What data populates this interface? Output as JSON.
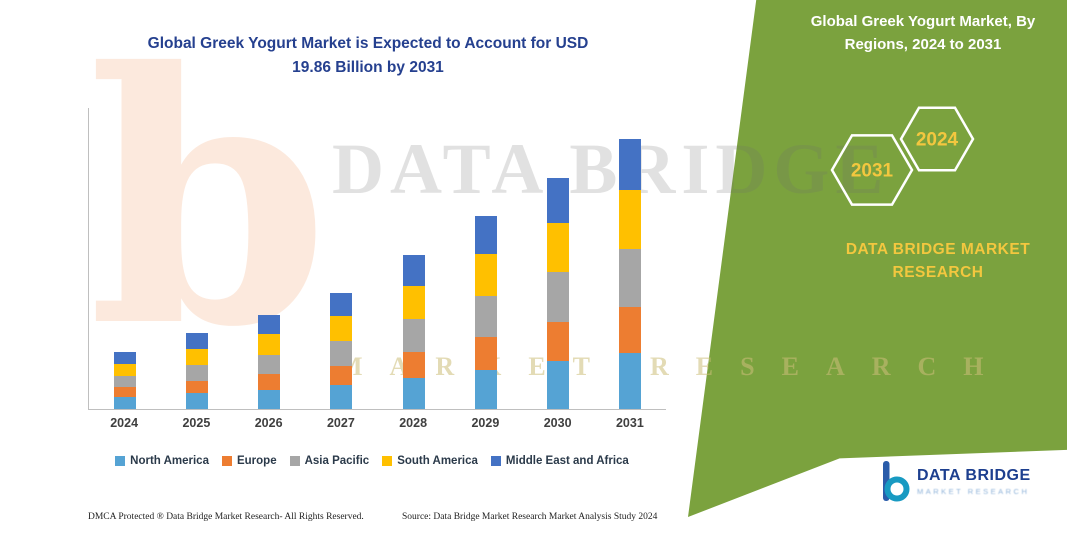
{
  "title": {
    "line1": "Global Greek Yogurt Market is Expected to Account for USD",
    "line2": "19.86 Billion by 2031"
  },
  "right_panel": {
    "heading_line1": "Global Greek Yogurt Market, By",
    "heading_line2": "Regions, 2024 to 2031",
    "hex_left": "2031",
    "hex_right": "2024",
    "brand_line1": "DATA BRIDGE MARKET",
    "brand_line2": "RESEARCH"
  },
  "watermarks": {
    "logo_letter": "b",
    "main": "DATA BRIDGE",
    "secondary": "MARKET RESEARCH"
  },
  "footer": {
    "dmca": "DMCA Protected ® Data Bridge Market Research-  All Rights Reserved.",
    "source": "Source: Data Bridge Market Research  Market Analysis Study 2024"
  },
  "logo": {
    "title": "DATA BRIDGE",
    "subtitle": "MARKET RESEARCH"
  },
  "colors": {
    "panel_green": "#7ba23e",
    "accent_yellow": "#f3c73f",
    "title_blue": "#25408f",
    "watermark_orange": "#ed7d31",
    "logo_navy": "#1d3f8f",
    "logo_teal": "#189ac2",
    "axis_gray": "#bfbfbf"
  },
  "chart_data": {
    "type": "bar",
    "stacked": true,
    "title": "Global Greek Yogurt Market is Expected to Account for USD 19.86 Billion by 2031",
    "unit": "USD Billion",
    "xlabel": "",
    "ylabel": "",
    "ylim": [
      0,
      22
    ],
    "grid": false,
    "legend_position": "bottom",
    "categories": [
      "2024",
      "2025",
      "2026",
      "2027",
      "2028",
      "2029",
      "2030",
      "2031"
    ],
    "series": [
      {
        "name": "North America",
        "color": "#55a3d4",
        "values": [
          0.9,
          1.15,
          1.4,
          1.75,
          2.3,
          2.9,
          3.5,
          4.1
        ]
      },
      {
        "name": "Europe",
        "color": "#ed7d31",
        "values": [
          0.7,
          0.95,
          1.15,
          1.45,
          1.9,
          2.4,
          2.9,
          3.4
        ]
      },
      {
        "name": "Asia Pacific",
        "color": "#a6a6a6",
        "values": [
          0.85,
          1.15,
          1.45,
          1.8,
          2.4,
          3.05,
          3.65,
          4.3
        ]
      },
      {
        "name": "South America",
        "color": "#ffc000",
        "values": [
          0.9,
          1.2,
          1.5,
          1.85,
          2.45,
          3.05,
          3.65,
          4.3
        ]
      },
      {
        "name": "Middle East and Africa",
        "color": "#4472c4",
        "values": [
          0.85,
          1.15,
          1.4,
          1.7,
          2.25,
          2.8,
          3.3,
          3.76
        ]
      }
    ],
    "totals": [
      4.2,
      5.6,
      6.9,
      8.55,
      11.3,
      14.2,
      17.0,
      19.86
    ]
  }
}
